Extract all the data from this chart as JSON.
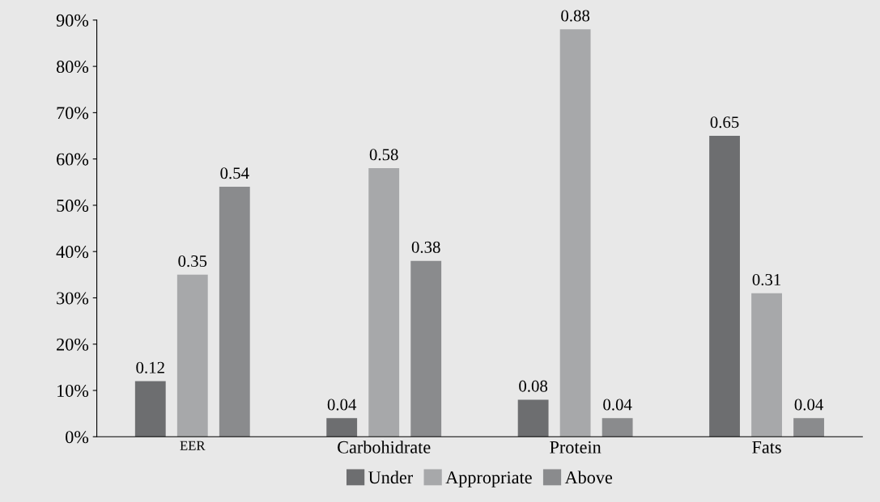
{
  "chart_data": {
    "type": "bar",
    "categories": [
      "EER",
      "Carbohidrate",
      "Protein",
      "Fats"
    ],
    "series": [
      {
        "name": "Under",
        "color": "#6d6e70",
        "values": [
          0.12,
          0.04,
          0.08,
          0.65
        ]
      },
      {
        "name": "Appropriate",
        "color": "#a7a8aa",
        "values": [
          0.35,
          0.58,
          0.88,
          0.31
        ]
      },
      {
        "name": "Above",
        "color": "#8a8b8d",
        "values": [
          0.54,
          0.38,
          0.04,
          0.04
        ]
      }
    ],
    "ylim": [
      0,
      0.9
    ],
    "yticks": [
      {
        "value": 0,
        "label": "0%"
      },
      {
        "value": 0.1,
        "label": "10%"
      },
      {
        "value": 0.2,
        "label": "20%"
      },
      {
        "value": 0.3,
        "label": "30%"
      },
      {
        "value": 0.4,
        "label": "40%"
      },
      {
        "value": 0.5,
        "label": "50%"
      },
      {
        "value": 0.6,
        "label": "60%"
      },
      {
        "value": 0.7,
        "label": "70%"
      },
      {
        "value": 0.8,
        "label": "80%"
      },
      {
        "value": 0.9,
        "label": "90%"
      }
    ],
    "data_labels": true,
    "grid": false,
    "legend": "bottom"
  }
}
